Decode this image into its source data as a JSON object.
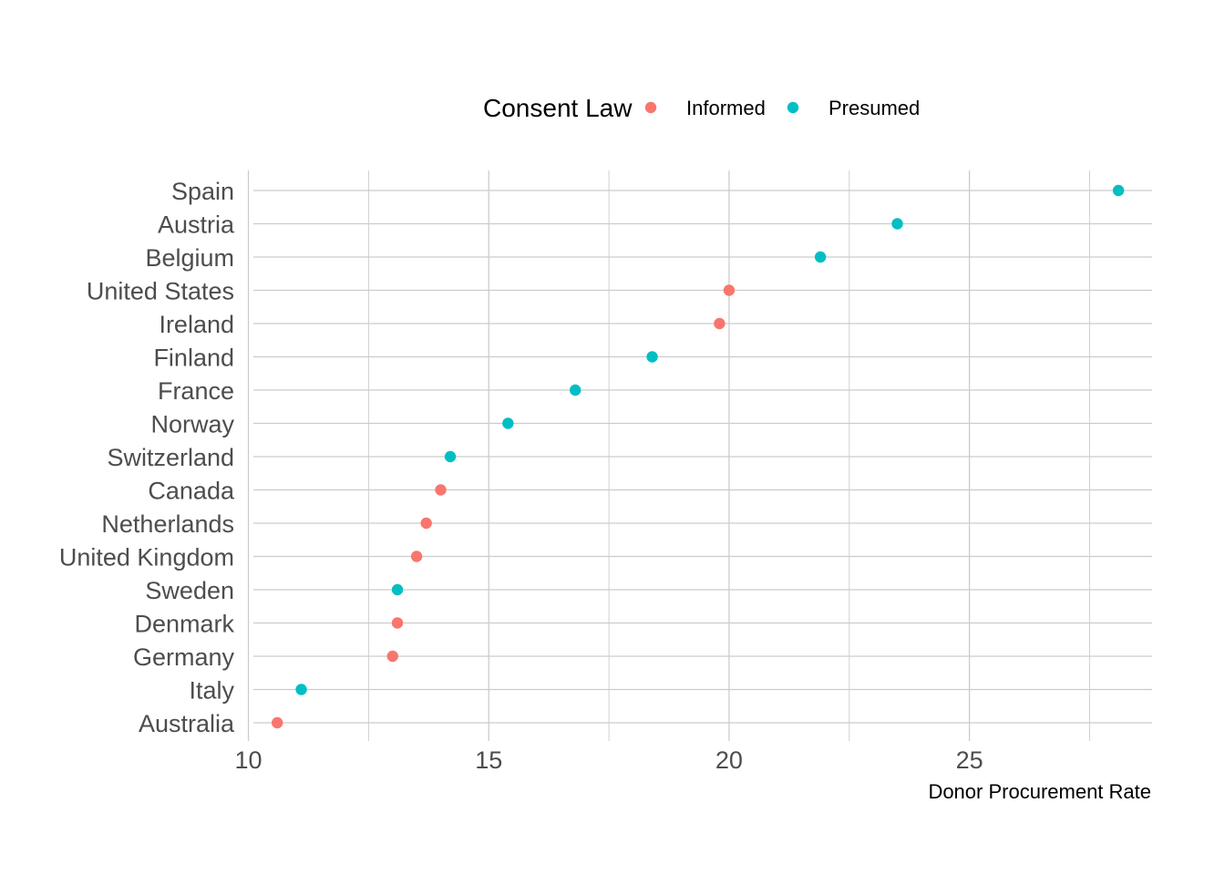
{
  "chart_data": {
    "type": "scatter",
    "xlabel": "Donor Procurement Rate",
    "ylabel": "",
    "xlim": [
      9.8,
      28.8
    ],
    "x_ticks": [
      10,
      15,
      20,
      25
    ],
    "x_minor_ticks": [
      12.5,
      17.5,
      22.5,
      27.5
    ],
    "legend": {
      "title": "Consent Law",
      "position": "top",
      "entries": [
        {
          "name": "Informed",
          "color": "#F8766D"
        },
        {
          "name": "Presumed",
          "color": "#00BFC4"
        }
      ]
    },
    "grid": true,
    "categories": [
      "Spain",
      "Austria",
      "Belgium",
      "United States",
      "Ireland",
      "Finland",
      "France",
      "Norway",
      "Switzerland",
      "Canada",
      "Netherlands",
      "United Kingdom",
      "Sweden",
      "Denmark",
      "Germany",
      "Italy",
      "Australia"
    ],
    "points": [
      {
        "country": "Spain",
        "value": 28.1,
        "group": "Presumed"
      },
      {
        "country": "Austria",
        "value": 23.5,
        "group": "Presumed"
      },
      {
        "country": "Belgium",
        "value": 21.9,
        "group": "Presumed"
      },
      {
        "country": "United States",
        "value": 20.0,
        "group": "Informed"
      },
      {
        "country": "Ireland",
        "value": 19.8,
        "group": "Informed"
      },
      {
        "country": "Finland",
        "value": 18.4,
        "group": "Presumed"
      },
      {
        "country": "France",
        "value": 16.8,
        "group": "Presumed"
      },
      {
        "country": "Norway",
        "value": 15.4,
        "group": "Presumed"
      },
      {
        "country": "Switzerland",
        "value": 14.2,
        "group": "Presumed"
      },
      {
        "country": "Canada",
        "value": 14.0,
        "group": "Informed"
      },
      {
        "country": "Netherlands",
        "value": 13.7,
        "group": "Informed"
      },
      {
        "country": "United Kingdom",
        "value": 13.5,
        "group": "Informed"
      },
      {
        "country": "Sweden",
        "value": 13.1,
        "group": "Presumed"
      },
      {
        "country": "Denmark",
        "value": 13.1,
        "group": "Informed"
      },
      {
        "country": "Germany",
        "value": 13.0,
        "group": "Informed"
      },
      {
        "country": "Italy",
        "value": 11.1,
        "group": "Presumed"
      },
      {
        "country": "Australia",
        "value": 10.6,
        "group": "Informed"
      }
    ]
  }
}
